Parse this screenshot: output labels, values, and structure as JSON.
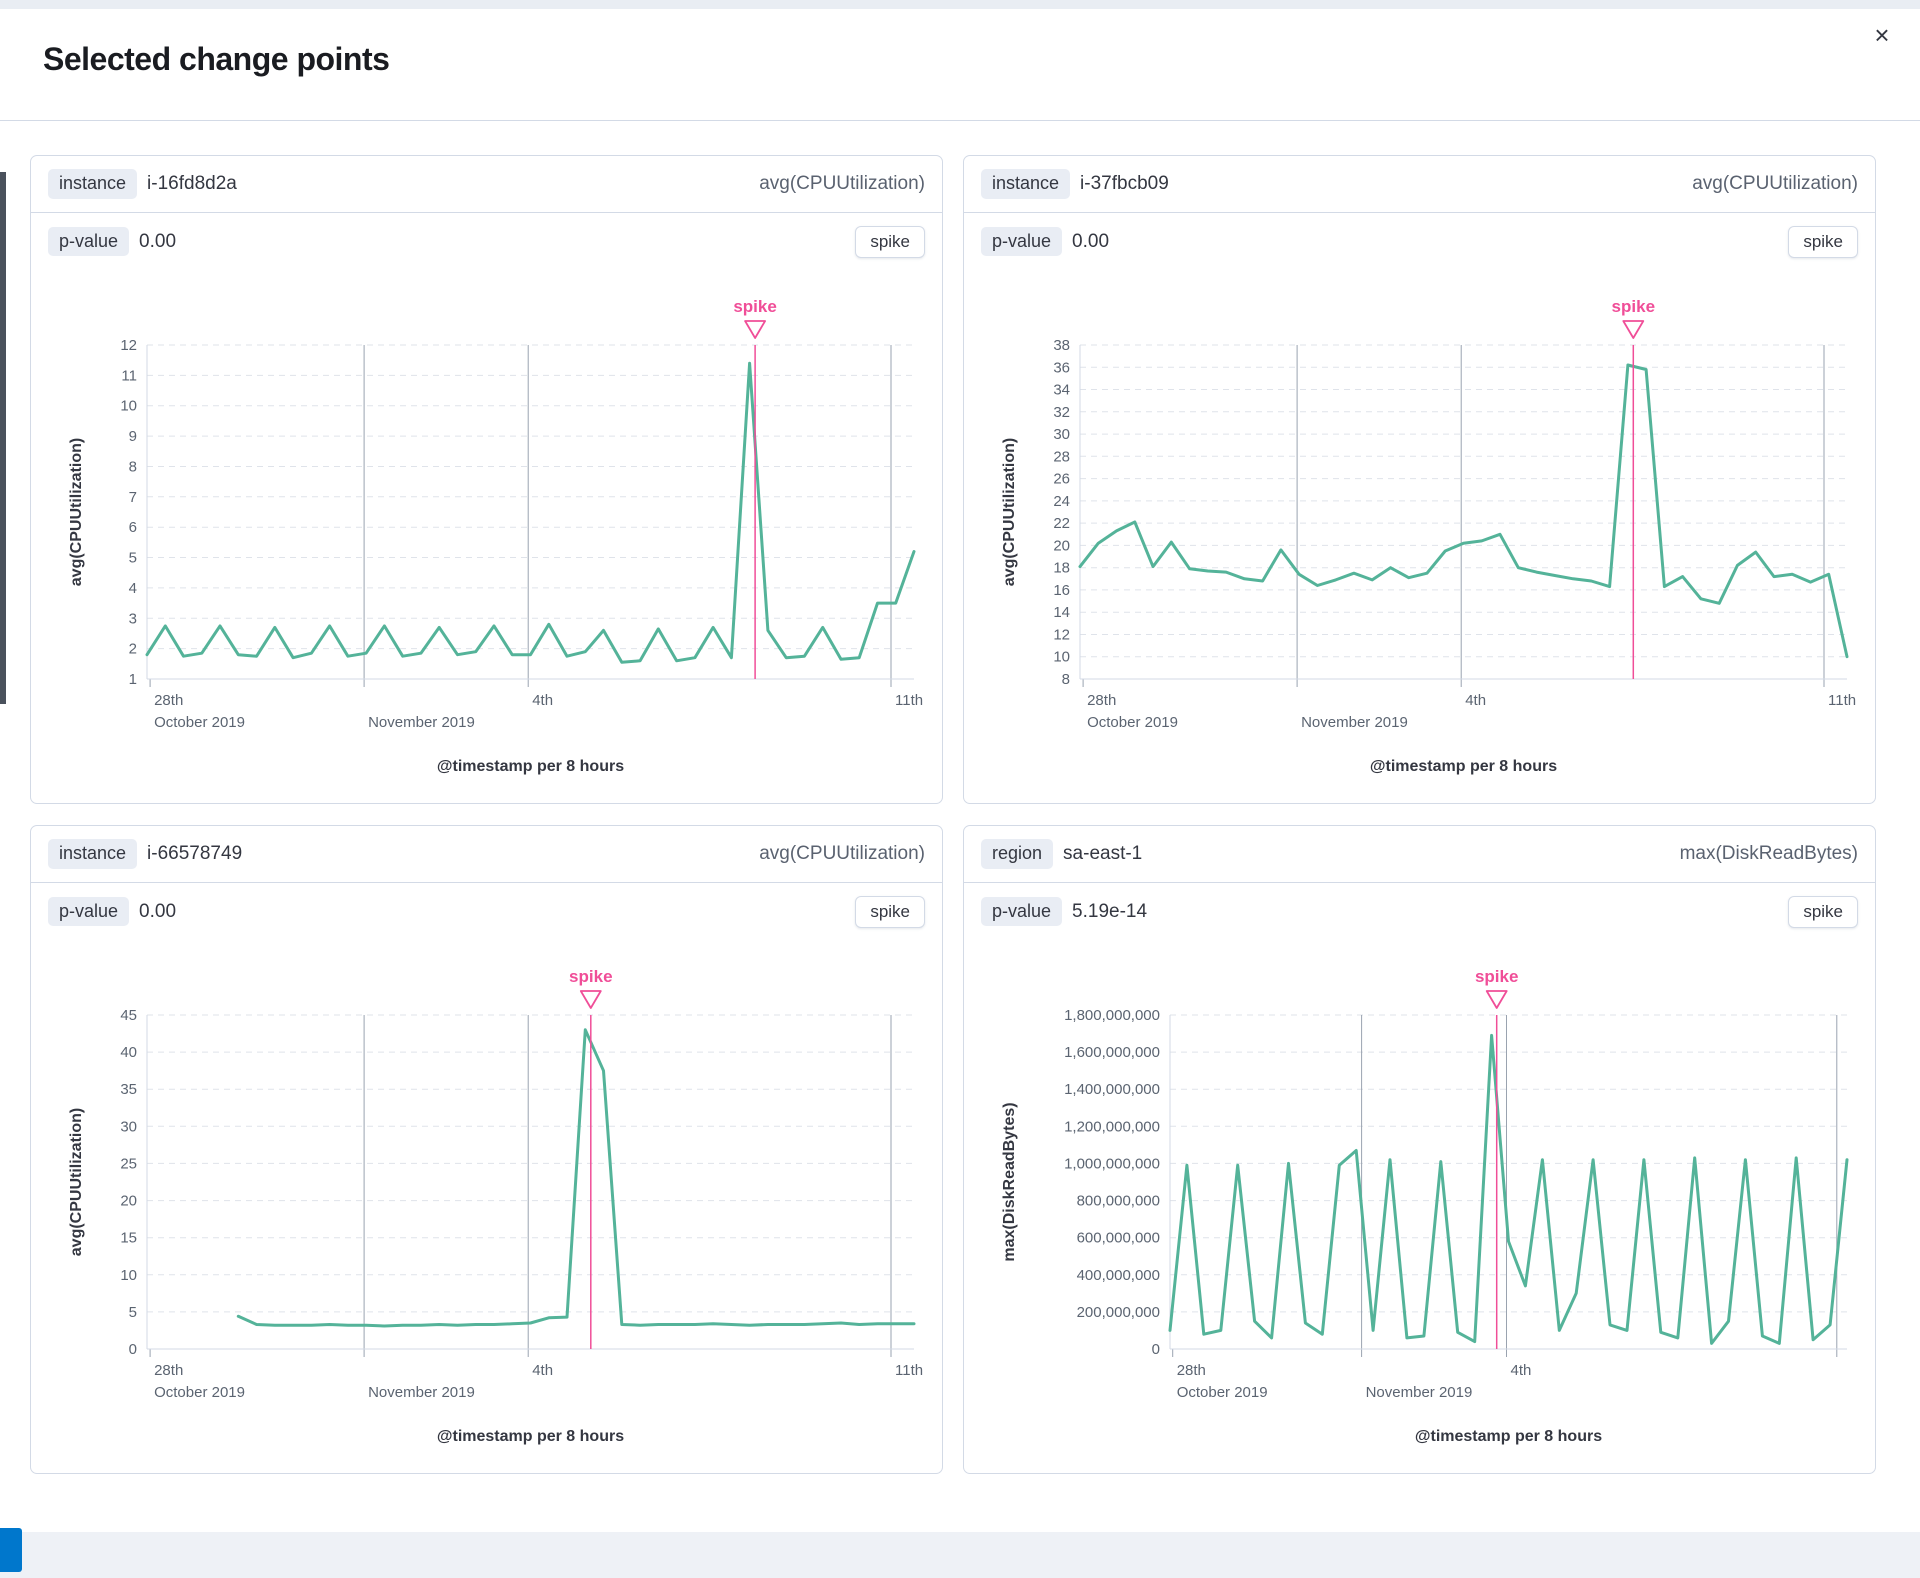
{
  "modal": {
    "title": "Selected change points",
    "close_icon": "×"
  },
  "colors": {
    "line": "#54B399",
    "accent": "#F04E98",
    "grid_dashed": "#dfe3ea",
    "grid_vertical": "#9aa3b0",
    "axis_line": "#d3dae6"
  },
  "panels": [
    {
      "badge": "instance",
      "entity": "i-16fd8d2a",
      "metric": "avg(CPUUtilization)",
      "pvalue_label": "p-value",
      "pvalue": "0.00",
      "type_label": "spike"
    },
    {
      "badge": "instance",
      "entity": "i-37fbcb09",
      "metric": "avg(CPUUtilization)",
      "pvalue_label": "p-value",
      "pvalue": "0.00",
      "type_label": "spike"
    },
    {
      "badge": "instance",
      "entity": "i-66578749",
      "metric": "avg(CPUUtilization)",
      "pvalue_label": "p-value",
      "pvalue": "0.00",
      "type_label": "spike"
    },
    {
      "badge": "region",
      "entity": "sa-east-1",
      "metric": "max(DiskReadBytes)",
      "pvalue_label": "p-value",
      "pvalue": "5.19e-14",
      "type_label": "spike"
    }
  ],
  "chart_data": [
    {
      "type": "line",
      "series_name": "avg(CPUUtilization) i-16fd8d2a",
      "ylabel": "avg(CPUUtilization)",
      "xlabel": "@timestamp per 8 hours",
      "annotation": "spike",
      "ylim": [
        1,
        12
      ],
      "yticks": [
        1,
        2,
        3,
        4,
        5,
        6,
        7,
        8,
        9,
        10,
        11,
        12
      ],
      "ytick_labels": [
        "1",
        "2",
        "3",
        "4",
        "5",
        "6",
        "7",
        "8",
        "9",
        "10",
        "11",
        "12"
      ],
      "xticks": [
        {
          "frac": 0.004,
          "line1": "28th",
          "line2": "October 2019"
        },
        {
          "frac": 0.283,
          "line1": "",
          "line2": "November 2019"
        },
        {
          "frac": 0.497,
          "line1": "4th",
          "line2": ""
        },
        {
          "frac": 0.97,
          "line1": "11th",
          "line2": ""
        }
      ],
      "values": [
        1.8,
        2.75,
        1.75,
        1.85,
        2.75,
        1.8,
        1.75,
        2.7,
        1.7,
        1.85,
        2.75,
        1.75,
        1.85,
        2.75,
        1.75,
        1.85,
        2.7,
        1.8,
        1.9,
        2.75,
        1.8,
        1.8,
        2.8,
        1.75,
        1.9,
        2.6,
        1.55,
        1.6,
        2.65,
        1.6,
        1.7,
        2.7,
        1.7,
        11.4,
        2.6,
        1.7,
        1.75,
        2.7,
        1.65,
        1.7,
        3.5,
        3.5,
        5.2
      ],
      "spike_index": 33
    },
    {
      "type": "line",
      "series_name": "avg(CPUUtilization) i-37fbcb09",
      "ylabel": "avg(CPUUtilization)",
      "xlabel": "@timestamp per 8 hours",
      "annotation": "spike",
      "ylim": [
        8,
        38
      ],
      "yticks": [
        8,
        10,
        12,
        14,
        16,
        18,
        20,
        22,
        24,
        26,
        28,
        30,
        32,
        34,
        36,
        38
      ],
      "ytick_labels": [
        "8",
        "10",
        "12",
        "14",
        "16",
        "18",
        "20",
        "22",
        "24",
        "26",
        "28",
        "30",
        "32",
        "34",
        "36",
        "38"
      ],
      "xticks": [
        {
          "frac": 0.004,
          "line1": "28th",
          "line2": "October 2019"
        },
        {
          "frac": 0.283,
          "line1": "",
          "line2": "November 2019"
        },
        {
          "frac": 0.497,
          "line1": "4th",
          "line2": ""
        },
        {
          "frac": 0.97,
          "line1": "11th",
          "line2": ""
        }
      ],
      "values": [
        18.1,
        20.2,
        21.3,
        22.1,
        18.1,
        20.3,
        17.9,
        17.7,
        17.6,
        17.0,
        16.8,
        19.6,
        17.4,
        16.4,
        16.9,
        17.5,
        16.9,
        18.0,
        17.1,
        17.5,
        19.5,
        20.2,
        20.4,
        21.0,
        18.0,
        17.6,
        17.3,
        17.0,
        16.8,
        16.3,
        36.2,
        35.8,
        16.3,
        17.2,
        15.2,
        14.8,
        18.2,
        19.4,
        17.2,
        17.4,
        16.7,
        17.4,
        10.0
      ],
      "spike_index": 30
    },
    {
      "type": "line",
      "series_name": "avg(CPUUtilization) i-66578749",
      "ylabel": "avg(CPUUtilization)",
      "xlabel": "@timestamp per 8 hours",
      "annotation": "spike",
      "ylim": [
        0,
        45
      ],
      "yticks": [
        0,
        5,
        10,
        15,
        20,
        25,
        30,
        35,
        40,
        45
      ],
      "ytick_labels": [
        "0",
        "5",
        "10",
        "15",
        "20",
        "25",
        "30",
        "35",
        "40",
        "45"
      ],
      "xticks": [
        {
          "frac": 0.004,
          "line1": "28th",
          "line2": "October 2019"
        },
        {
          "frac": 0.283,
          "line1": "",
          "line2": "November 2019"
        },
        {
          "frac": 0.497,
          "line1": "4th",
          "line2": ""
        },
        {
          "frac": 0.97,
          "line1": "11th",
          "line2": ""
        }
      ],
      "values": [
        null,
        null,
        null,
        null,
        null,
        4.4,
        3.3,
        3.2,
        3.2,
        3.2,
        3.3,
        3.2,
        3.2,
        3.1,
        3.2,
        3.2,
        3.3,
        3.2,
        3.3,
        3.3,
        3.4,
        3.5,
        4.2,
        4.3,
        43.0,
        37.5,
        3.3,
        3.2,
        3.3,
        3.3,
        3.3,
        3.4,
        3.3,
        3.2,
        3.3,
        3.3,
        3.3,
        3.4,
        3.5,
        3.3,
        3.4,
        3.4,
        3.4
      ],
      "spike_index": 24
    },
    {
      "type": "line",
      "series_name": "max(DiskReadBytes) sa-east-1",
      "ylabel": "max(DiskReadBytes)",
      "xlabel": "@timestamp per 8 hours",
      "annotation": "spike",
      "ylim": [
        0,
        1800000000
      ],
      "yticks": [
        0,
        200000000,
        400000000,
        600000000,
        800000000,
        1000000000,
        1200000000,
        1400000000,
        1600000000,
        1800000000
      ],
      "ytick_labels": [
        "0",
        "200,000,000",
        "400,000,000",
        "600,000,000",
        "800,000,000",
        "1,000,000,000",
        "1,200,000,000",
        "1,400,000,000",
        "1,600,000,000",
        "1,800,000,000"
      ],
      "xticks": [
        {
          "frac": 0.004,
          "line1": "28th",
          "line2": "October 2019"
        },
        {
          "frac": 0.283,
          "line1": "",
          "line2": "November 2019"
        },
        {
          "frac": 0.497,
          "line1": "4th",
          "line2": ""
        },
        {
          "frac": 0.985,
          "line1": "",
          "line2": ""
        }
      ],
      "values": [
        100000000,
        990000000,
        80000000,
        100000000,
        990000000,
        150000000,
        60000000,
        1000000000,
        140000000,
        80000000,
        990000000,
        1070000000,
        100000000,
        1020000000,
        60000000,
        70000000,
        1010000000,
        90000000,
        40000000,
        1690000000,
        580000000,
        340000000,
        1020000000,
        100000000,
        300000000,
        1020000000,
        130000000,
        100000000,
        1020000000,
        90000000,
        60000000,
        1030000000,
        30000000,
        150000000,
        1020000000,
        70000000,
        30000000,
        1030000000,
        50000000,
        130000000,
        1020000000
      ],
      "spike_index": 19
    }
  ]
}
